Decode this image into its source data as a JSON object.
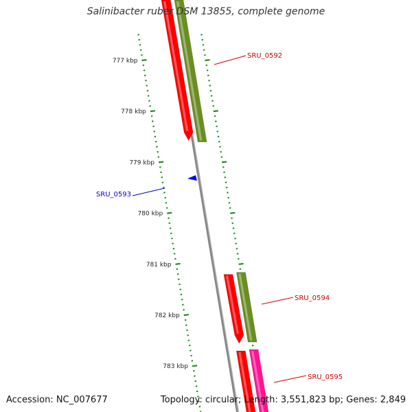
{
  "title": "Salinibacter ruber DSM 13855, complete genome",
  "footer": {
    "accession": "Accession: NC_007677",
    "summary": "Topology: circular; Length: 3,551,823 bp; Genes: 2,849"
  },
  "colors": {
    "backbone": "#888888",
    "cds": "#ff0000",
    "gene_green": "#6b8e23",
    "gene_magenta": "#ff1493",
    "forward_label": "#cc0000",
    "reverse_label": "#0000cc",
    "tick": "#228b22"
  },
  "scale_ticks": [
    {
      "label": "777 kbp",
      "kbp": 777
    },
    {
      "label": "778 kbp",
      "kbp": 778
    },
    {
      "label": "779 kbp",
      "kbp": 779
    },
    {
      "label": "780 kbp",
      "kbp": 780
    },
    {
      "label": "781 kbp",
      "kbp": 781
    },
    {
      "label": "782 kbp",
      "kbp": 782
    },
    {
      "label": "783 kbp",
      "kbp": 783
    }
  ],
  "genes": [
    {
      "name": "SRU_0592",
      "strand": "forward",
      "start_kbp": 776.0,
      "end_kbp": 778.6
    },
    {
      "name": "SRU_0593",
      "strand": "reverse",
      "start_kbp": 779.32,
      "end_kbp": 779.42
    },
    {
      "name": "SRU_0594",
      "strand": "forward",
      "start_kbp": 781.2,
      "end_kbp": 782.5
    },
    {
      "name": "SRU_0595",
      "strand": "forward",
      "start_kbp": 782.7,
      "end_kbp": 784.0
    }
  ]
}
